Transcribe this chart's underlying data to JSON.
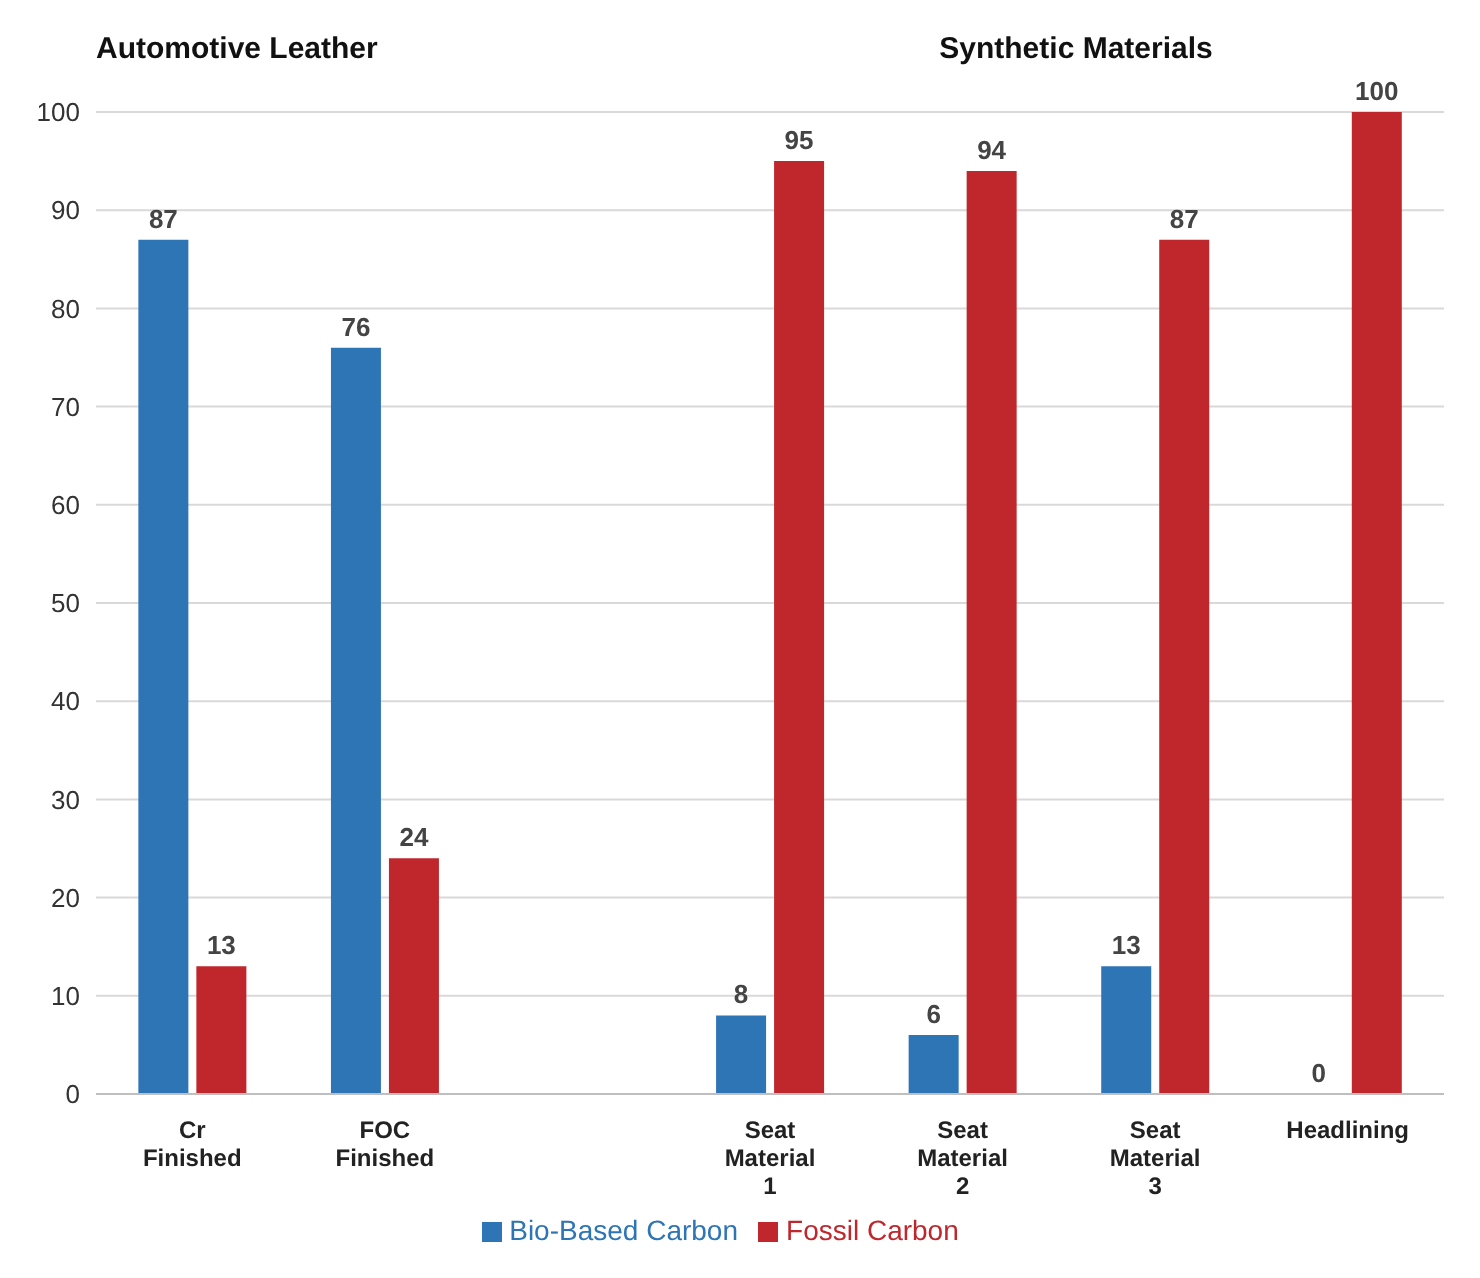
{
  "chart_data": {
    "type": "bar",
    "categories": [
      "Cr Finished",
      "FOC Finished",
      null,
      "Seat Material 1",
      "Seat Material 2",
      "Seat Material 3",
      "Headlining"
    ],
    "series": [
      {
        "name": "Bio-Based Carbon",
        "color": "#2e75b6",
        "values": [
          87,
          76,
          null,
          8,
          6,
          13,
          0
        ]
      },
      {
        "name": "Fossil Carbon",
        "color": "#c0272d",
        "values": [
          13,
          24,
          null,
          95,
          94,
          87,
          100
        ]
      }
    ],
    "ylim": [
      0,
      100
    ],
    "yticks": [
      0,
      10,
      20,
      30,
      40,
      50,
      60,
      70,
      80,
      90,
      100
    ],
    "grid": "y",
    "legend": "bottom",
    "data_labels": true,
    "annotations": [
      "Automotive Leather",
      "Synthetic Materials"
    ]
  }
}
